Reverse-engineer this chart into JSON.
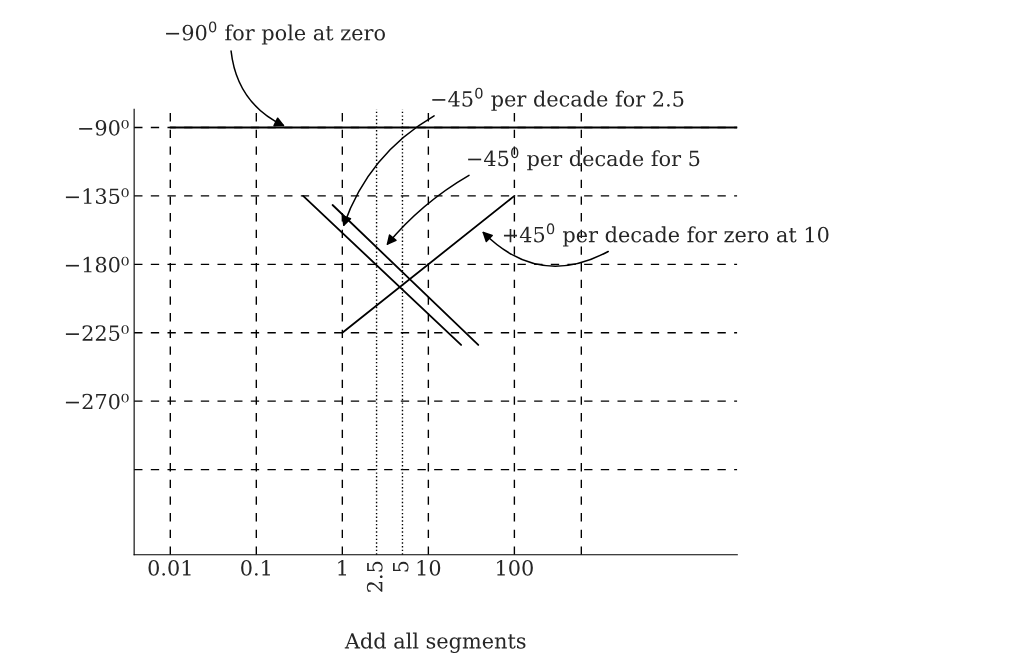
{
  "chart_data": {
    "type": "line",
    "xlabel": "Add all segments",
    "log": "x",
    "xlim": [
      0.0038,
      39000
    ],
    "ylim": [
      -371,
      -78
    ],
    "xticks": [
      0.01,
      0.1,
      1,
      10,
      100,
      {
        "value": 600,
        "label": null
      }
    ],
    "yticks": [
      {
        "value": -90,
        "label": "−90⁰"
      },
      {
        "value": -135,
        "label": "−135⁰"
      },
      {
        "value": -180,
        "label": "−180⁰"
      },
      {
        "value": -225,
        "label": "−225⁰"
      },
      {
        "value": -270,
        "label": "−270⁰"
      },
      {
        "value": -315,
        "label": null
      }
    ],
    "grid": true,
    "legend": false,
    "marker": "none",
    "line_style": "solid",
    "series": [
      {
        "color": "#000000",
        "x": [
          0.01,
          39000
        ],
        "values": [
          -90,
          -90
        ]
      },
      {
        "color": "#000000",
        "x": [
          0.35,
          24
        ],
        "values": [
          -135,
          -233
        ]
      },
      {
        "color": "#000000",
        "x": [
          0.77,
          38
        ],
        "values": [
          -141,
          -233
        ]
      },
      {
        "color": "#000000",
        "x": [
          1,
          100
        ],
        "values": [
          -225,
          -135
        ]
      }
    ],
    "ref_lines": [
      {
        "axis": "x",
        "value": 2.5,
        "label": "2.5",
        "line_style": "dotted",
        "color": "#000000"
      },
      {
        "axis": "x",
        "value": 5,
        "label": "5",
        "line_style": "dotted",
        "color": "#000000"
      }
    ],
    "annotations": [
      {
        "text": "−90$^{0}$ for pole at zero",
        "x": 0.23,
        "y": -90
      },
      {
        "text": "−45$^{0}$ per decade for 2.5",
        "x": 1,
        "y": -157
      },
      {
        "text": "−45$^{0}$ per decade for 5",
        "x": 3.1,
        "y": -169
      },
      {
        "text": "+45$^{0}$ per decade for zero at 10",
        "x": 40,
        "y": -157
      }
    ]
  }
}
